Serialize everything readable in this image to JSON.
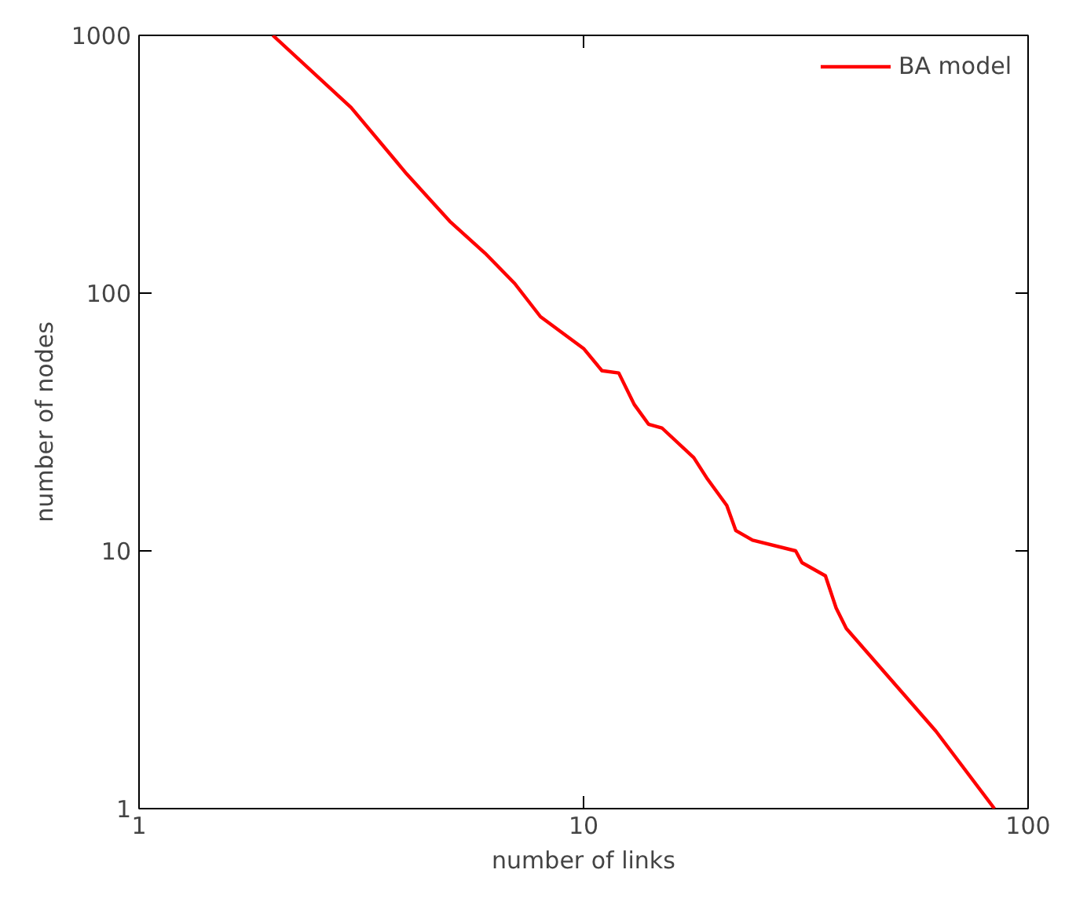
{
  "chart_data": {
    "type": "line",
    "xlabel": "number of links",
    "ylabel": "number of nodes",
    "log": "xy",
    "xlim": [
      1,
      100
    ],
    "ylim": [
      1,
      1000
    ],
    "xticks": [
      1,
      10,
      100
    ],
    "yticks": [
      1,
      10,
      100,
      1000
    ],
    "grid": false,
    "legend": "top right",
    "marker": "none",
    "line_style": "solid",
    "series": [
      {
        "name": "BA model",
        "color": "#ff0000",
        "x": [
          2,
          3,
          4,
          5,
          6,
          7,
          8,
          10,
          11,
          12,
          13,
          14,
          15,
          17.7,
          19,
          21,
          22,
          24,
          30,
          31,
          35,
          37,
          39,
          50.5,
          62,
          84
        ],
        "values": [
          1000,
          525,
          290,
          190,
          143,
          109,
          81,
          61,
          50,
          49,
          37,
          31,
          30,
          23,
          19,
          15,
          12,
          11,
          10,
          9,
          8,
          6,
          5,
          3,
          2,
          1
        ]
      }
    ]
  }
}
